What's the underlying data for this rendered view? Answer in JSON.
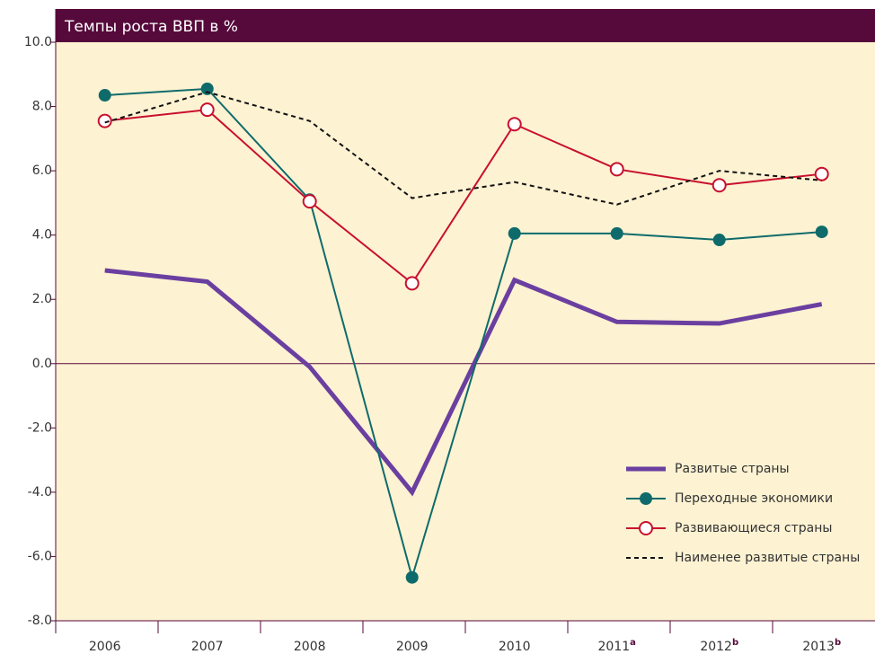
{
  "chart_data": {
    "type": "line",
    "title": "Темпы роста ВВП в %",
    "categories": [
      "2006",
      "2007",
      "2008",
      "2009",
      "2010",
      "2011",
      "2012",
      "2013"
    ],
    "category_notes": [
      null,
      null,
      null,
      null,
      null,
      "a",
      "b",
      "b"
    ],
    "ylim": [
      -8,
      10
    ],
    "yticks": [
      {
        "value": -8,
        "label": "-8.0"
      },
      {
        "value": -6,
        "label": "-6.0"
      },
      {
        "value": -4,
        "label": "-4.0"
      },
      {
        "value": -2,
        "label": "-2.0"
      },
      {
        "value": 0,
        "label": "0.0"
      },
      {
        "value": 2,
        "label": "2.0"
      },
      {
        "value": 4,
        "label": "4.0"
      },
      {
        "value": 6,
        "label": "6.0"
      },
      {
        "value": 8,
        "label": "8.0"
      },
      {
        "value": 10,
        "label": "10.0"
      }
    ],
    "legend": "lower right",
    "series": [
      {
        "name": "Развитые страны",
        "color": "#6b3fa0",
        "style": "thick",
        "values": [
          2.9,
          2.55,
          -0.1,
          -4.0,
          2.6,
          1.3,
          1.25,
          1.85
        ]
      },
      {
        "name": "Переходные экономики",
        "color": "#0f6b6b",
        "style": "filled-marker",
        "values": [
          8.35,
          8.55,
          5.1,
          -6.65,
          4.05,
          4.05,
          3.85,
          4.1
        ]
      },
      {
        "name": "Развивающиеся страны",
        "color": "#c8102e",
        "style": "open-marker",
        "values": [
          7.55,
          7.9,
          5.05,
          2.5,
          7.45,
          6.05,
          5.55,
          5.9
        ]
      },
      {
        "name": "Наименее развитые страны",
        "color": "#111111",
        "style": "dashed",
        "values": [
          7.5,
          8.45,
          7.55,
          5.15,
          5.65,
          4.95,
          6.0,
          5.7
        ]
      }
    ]
  }
}
